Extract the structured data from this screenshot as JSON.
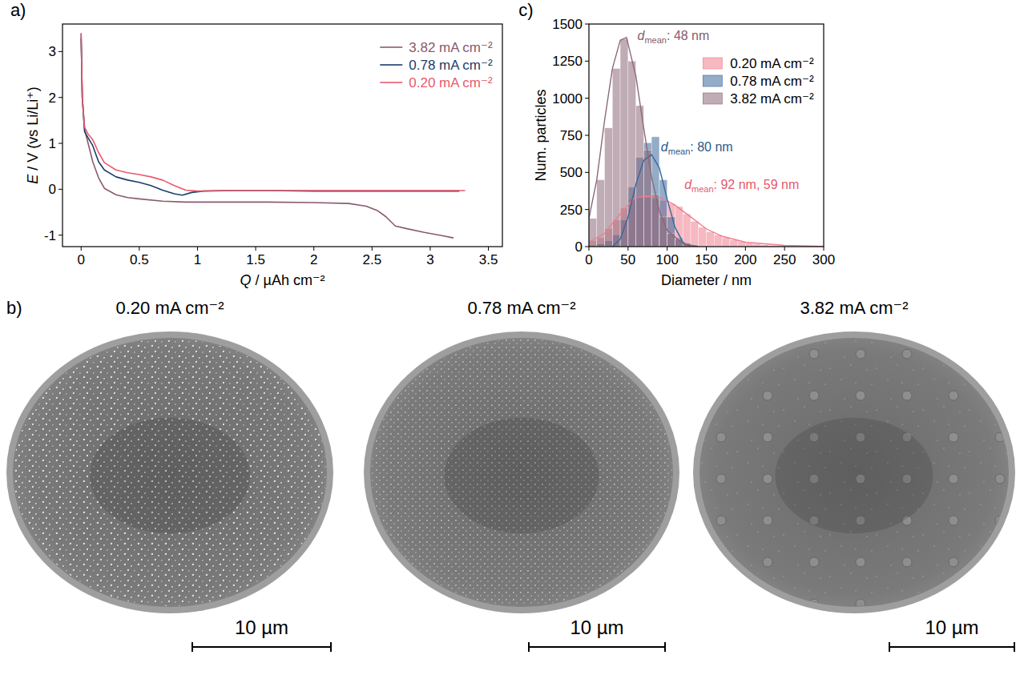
{
  "chart_data": [
    {
      "type": "line",
      "panel": "a)",
      "xlabel": "Q / µAh cm⁻²",
      "ylabel": "E / V (vs Li/Li⁺)",
      "xlim": [
        -0.16,
        3.62
      ],
      "ylim": [
        -1.25,
        3.6
      ],
      "xticks": [
        0,
        0.5,
        1,
        1.5,
        2,
        2.5,
        3,
        3.5
      ],
      "yticks": [
        -1,
        0,
        1,
        2,
        3
      ],
      "legend": "upper right",
      "series": [
        {
          "name": "3.82 mA cm⁻²",
          "color": "#8a5a6c",
          "x": [
            0,
            0.01,
            0.03,
            0.06,
            0.1,
            0.15,
            0.2,
            0.3,
            0.4,
            0.5,
            0.7,
            0.9,
            1.2,
            1.6,
            2.0,
            2.3,
            2.45,
            2.55,
            2.62,
            2.7,
            2.8,
            2.95,
            3.1,
            3.2
          ],
          "values": [
            3.4,
            2.0,
            1.3,
            1.0,
            0.6,
            0.25,
            0.02,
            -0.12,
            -0.18,
            -0.21,
            -0.26,
            -0.28,
            -0.28,
            -0.28,
            -0.29,
            -0.31,
            -0.37,
            -0.47,
            -0.6,
            -0.8,
            -0.86,
            -0.94,
            -1.01,
            -1.06
          ]
        },
        {
          "name": "0.78 mA cm⁻²",
          "color": "#1d3d6b",
          "x": [
            0,
            0.01,
            0.03,
            0.06,
            0.1,
            0.15,
            0.2,
            0.3,
            0.4,
            0.5,
            0.6,
            0.7,
            0.8,
            0.87,
            0.95,
            1.05,
            1.3,
            1.6,
            2.0,
            2.5,
            3.0,
            3.25
          ],
          "values": [
            3.3,
            2.0,
            1.25,
            1.12,
            0.95,
            0.6,
            0.42,
            0.27,
            0.2,
            0.15,
            0.08,
            -0.02,
            -0.1,
            -0.13,
            -0.07,
            -0.04,
            -0.03,
            -0.03,
            -0.04,
            -0.04,
            -0.04,
            -0.04
          ]
        },
        {
          "name": "0.20 mA cm⁻²",
          "color": "#e85a6e",
          "x": [
            0,
            0.01,
            0.03,
            0.06,
            0.1,
            0.15,
            0.2,
            0.3,
            0.4,
            0.5,
            0.6,
            0.7,
            0.8,
            0.9,
            1.0,
            1.2,
            1.6,
            2.0,
            2.5,
            3.0,
            3.3
          ],
          "values": [
            3.4,
            2.0,
            1.35,
            1.2,
            1.08,
            0.8,
            0.58,
            0.42,
            0.36,
            0.32,
            0.27,
            0.2,
            0.08,
            -0.02,
            -0.04,
            -0.03,
            -0.03,
            -0.03,
            -0.03,
            -0.03,
            -0.03
          ]
        }
      ]
    },
    {
      "type": "histogram",
      "panel": "c)",
      "xlabel": "Diameter / nm",
      "ylabel": "Num. particles",
      "xlim": [
        0,
        300
      ],
      "ylim": [
        0,
        1500
      ],
      "xticks": [
        0,
        50,
        100,
        150,
        200,
        250,
        300
      ],
      "yticks": [
        0,
        250,
        500,
        750,
        1000,
        1250,
        1500
      ],
      "legend": "upper right",
      "bins": [
        0,
        10,
        20,
        30,
        40,
        50,
        60,
        70,
        80,
        90,
        100,
        110,
        120,
        130,
        140,
        150,
        160,
        170,
        180,
        190,
        200,
        210,
        220,
        230,
        240,
        250,
        260,
        270,
        280,
        290,
        300
      ],
      "series": [
        {
          "name": "0.20 mA cm⁻²",
          "color": "#ee7d8e",
          "values": [
            40,
            60,
            120,
            180,
            260,
            320,
            340,
            330,
            320,
            310,
            290,
            270,
            220,
            170,
            130,
            100,
            80,
            60,
            45,
            35,
            25,
            18,
            12,
            8,
            6,
            4,
            3,
            2,
            1,
            1
          ],
          "fit": {
            "x": [
              0,
              20,
              40,
              59,
              75,
              92,
              110,
              130,
              150,
              170,
              200,
              250,
              300
            ],
            "values": [
              30,
              90,
              220,
              330,
              340,
              330,
              280,
              200,
              120,
              70,
              30,
              8,
              2
            ]
          }
        },
        {
          "name": "0.78 mA cm⁻²",
          "color": "#3a6899",
          "values": [
            10,
            20,
            40,
            80,
            180,
            400,
            600,
            700,
            740,
            450,
            200,
            60,
            20,
            5,
            2,
            0,
            0,
            0,
            0,
            0,
            0,
            0,
            0,
            0,
            0,
            0,
            0,
            0,
            0,
            0
          ],
          "fit": {
            "x": [
              30,
              40,
              50,
              60,
              70,
              80,
              90,
              100,
              110,
              120,
              130
            ],
            "values": [
              0,
              50,
              200,
              420,
              580,
              620,
              530,
              320,
              130,
              30,
              0
            ]
          }
        },
        {
          "name": "3.82 mA cm⁻²",
          "color": "#8c6878",
          "values": [
            190,
            450,
            800,
            1200,
            1400,
            1250,
            950,
            650,
            350,
            200,
            90,
            50,
            25,
            10,
            5,
            3,
            2,
            0,
            0,
            0,
            0,
            0,
            0,
            0,
            0,
            0,
            0,
            0,
            0,
            0
          ],
          "fit": {
            "x": [
              0,
              10,
              20,
              30,
              40,
              48,
              60,
              70,
              80,
              90,
              100,
              120,
              140
            ],
            "values": [
              190,
              450,
              850,
              1200,
              1390,
              1410,
              1150,
              800,
              470,
              240,
              110,
              20,
              0
            ]
          }
        }
      ],
      "annotations": [
        {
          "symbol": "d",
          "subscript": "mean",
          "text": ": 48 nm",
          "x": 62,
          "y": 1390,
          "color": "#8a5a6c"
        },
        {
          "symbol": "d",
          "subscript": "mean",
          "text": ": 80 nm",
          "x": 92,
          "y": 640,
          "color": "#2a5a8c"
        },
        {
          "symbol": "d",
          "subscript": "mean",
          "text": ": 92 nm,  59 nm",
          "x": 122,
          "y": 390,
          "color": "#e8586c"
        }
      ]
    }
  ],
  "images": {
    "panel": "b)",
    "items": [
      {
        "title": "0.20 mA cm⁻²",
        "scale_bar_label": "10 µm"
      },
      {
        "title": "0.78 mA cm⁻²",
        "scale_bar_label": "10 µm"
      },
      {
        "title": "3.82 mA cm⁻²",
        "scale_bar_label": "10 µm"
      }
    ]
  }
}
